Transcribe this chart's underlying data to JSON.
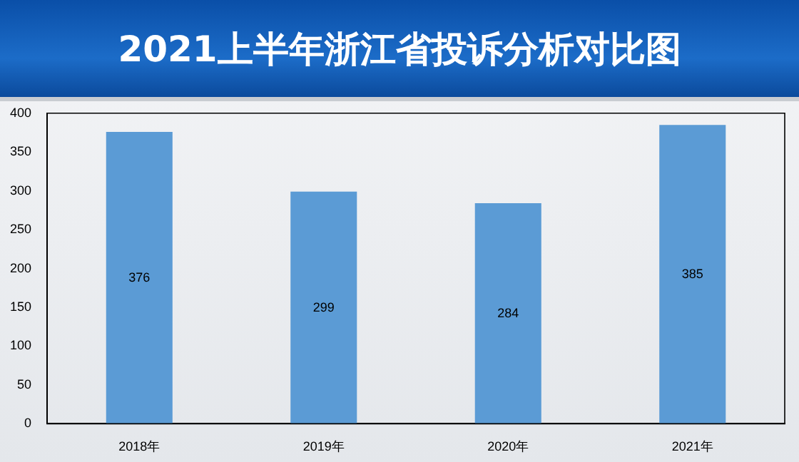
{
  "chart_data": {
    "type": "bar",
    "title": "2021上半年浙江省投诉分析对比图",
    "categories": [
      "2018年",
      "2019年",
      "2020年",
      "2021年"
    ],
    "values": [
      376,
      299,
      284,
      385
    ],
    "color": "#5b9bd5",
    "ylim": [
      0,
      400
    ],
    "yticks": [
      0,
      50,
      100,
      150,
      200,
      250,
      300,
      350,
      400
    ],
    "grid": false,
    "data_labels": true
  }
}
